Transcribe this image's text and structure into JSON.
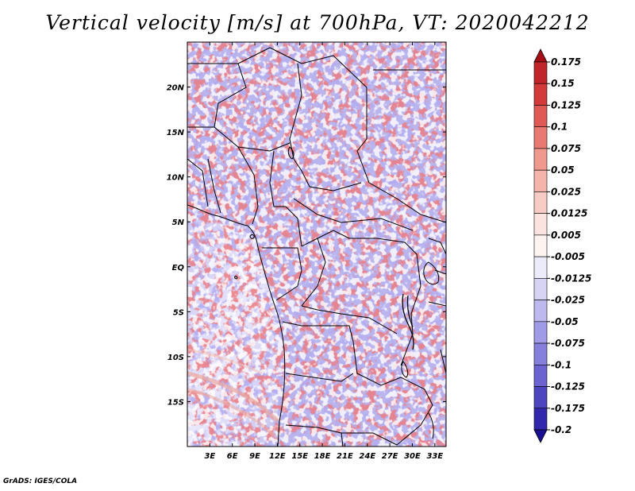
{
  "title": "Vertical velocity [m/s] at 700hPa, VT: 2020042212",
  "footer": "GrADS: IGES/COLA",
  "map": {
    "lat_labels": [
      "20N",
      "15N",
      "10N",
      "5N",
      "EQ",
      "5S",
      "10S",
      "15S"
    ],
    "lat_values": [
      20,
      15,
      10,
      5,
      0,
      -5,
      -10,
      -15
    ],
    "lon_labels": [
      "3E",
      "6E",
      "9E",
      "12E",
      "15E",
      "18E",
      "21E",
      "24E",
      "27E",
      "30E",
      "33E"
    ],
    "lon_values": [
      3,
      6,
      9,
      12,
      15,
      18,
      21,
      24,
      27,
      30,
      33
    ],
    "lon_range": [
      0,
      34.5
    ],
    "lat_range": [
      -20,
      25
    ]
  },
  "colorbar": {
    "levels": [
      "0.175",
      "0.15",
      "0.125",
      "0.1",
      "0.075",
      "0.05",
      "0.025",
      "0.0125",
      "0.005",
      "-0.005",
      "-0.0125",
      "-0.025",
      "-0.05",
      "-0.075",
      "-0.1",
      "-0.125",
      "-0.175",
      "-0.2"
    ],
    "colors": [
      "#a50f15",
      "#c0252a",
      "#d33a3a",
      "#e05a55",
      "#e97a72",
      "#ef988e",
      "#f4b4aa",
      "#f8ccc5",
      "#fbe3df",
      "#fdf3f1",
      "#ecebfa",
      "#d6d3f5",
      "#bdb8ee",
      "#a09be6",
      "#8580dc",
      "#6a63d0",
      "#4d45c0",
      "#3228ad",
      "#1a1094"
    ]
  }
}
